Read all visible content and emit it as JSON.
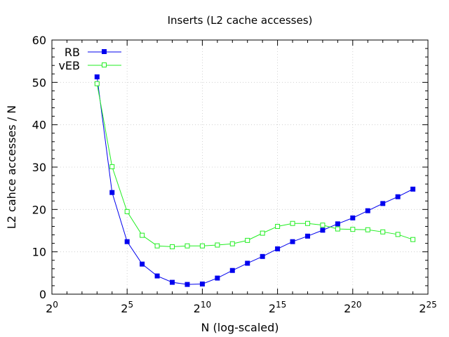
{
  "chart_data": {
    "type": "line",
    "title": "Inserts (L2 cache accesses)",
    "xlabel": "N (log-scaled)",
    "ylabel": "L2 cahce accesses / N",
    "x_scale": "log2",
    "x_tick_base": "2",
    "x_tick_exponents": [
      "0",
      "5",
      "10",
      "15",
      "20",
      "25"
    ],
    "xlim_exponent": [
      0,
      25
    ],
    "ylim": [
      0,
      60
    ],
    "y_ticks": [
      "0",
      "10",
      "20",
      "30",
      "40",
      "50",
      "60"
    ],
    "grid": true,
    "legend_position": "top-left",
    "x_exponents": [
      3,
      4,
      5,
      6,
      7,
      8,
      9,
      10,
      11,
      12,
      13,
      14,
      15,
      16,
      17,
      18,
      19,
      20,
      21,
      22,
      23,
      24
    ],
    "series": [
      {
        "name": "RB",
        "color": "#0000ee",
        "marker": "filled-square",
        "values": [
          51.3,
          24.0,
          12.4,
          7.1,
          4.3,
          2.8,
          2.3,
          2.4,
          3.8,
          5.6,
          7.3,
          8.9,
          10.7,
          12.4,
          13.7,
          15.1,
          16.6,
          18.0,
          19.7,
          21.4,
          23.0,
          24.8
        ]
      },
      {
        "name": "vEB",
        "color": "#22ee22",
        "marker": "open-square",
        "values": [
          49.7,
          30.1,
          19.5,
          13.9,
          11.4,
          11.2,
          11.4,
          11.4,
          11.6,
          11.9,
          12.7,
          14.4,
          16.0,
          16.7,
          16.7,
          16.3,
          15.4,
          15.3,
          15.2,
          14.7,
          14.1,
          12.9
        ]
      }
    ]
  }
}
